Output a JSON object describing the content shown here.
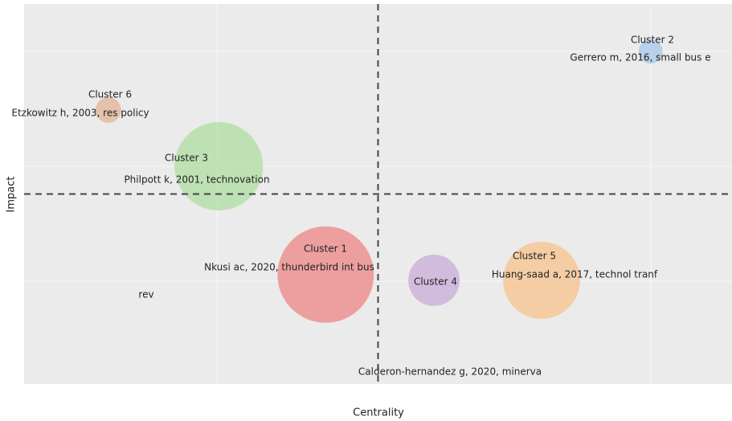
{
  "chart_data": {
    "type": "bubble",
    "x_label": "Centrality",
    "y_label": "Impact",
    "xlim": [
      0,
      1
    ],
    "ylim": [
      0,
      1
    ],
    "x_ref": 0.5,
    "y_ref": 0.5,
    "points": [
      {
        "name": "Cluster 1",
        "labels": [
          "Nkusi ac, 2020, thunderbird int bus",
          "rev"
        ],
        "x": 0.426,
        "y": 0.288,
        "size": 60,
        "color": "#ee8c8c"
      },
      {
        "name": "Cluster 2",
        "labels": [
          "Gerrero m, 2016, small bus e"
        ],
        "x": 0.885,
        "y": 0.875,
        "size": 15,
        "color": "#a9cbe8"
      },
      {
        "name": "Cluster 3",
        "labels": [
          "Philpott k, 2001, technovation"
        ],
        "x": 0.275,
        "y": 0.573,
        "size": 55,
        "color": "#b3dea6"
      },
      {
        "name": "Cluster 4",
        "labels": [
          "Calderon-hernandez g, 2020, minerva"
        ],
        "x": 0.579,
        "y": 0.273,
        "size": 32,
        "color": "#cbb0da"
      },
      {
        "name": "Cluster 5",
        "labels": [
          "Huang-saad a, 2017, technol tranf"
        ],
        "x": 0.731,
        "y": 0.273,
        "size": 48,
        "color": "#f6c592"
      },
      {
        "name": "Cluster 6",
        "labels": [
          "Etzkowitz h, 2003, res policy"
        ],
        "x": 0.119,
        "y": 0.721,
        "size": 16,
        "color": "#e3b79b"
      }
    ]
  }
}
